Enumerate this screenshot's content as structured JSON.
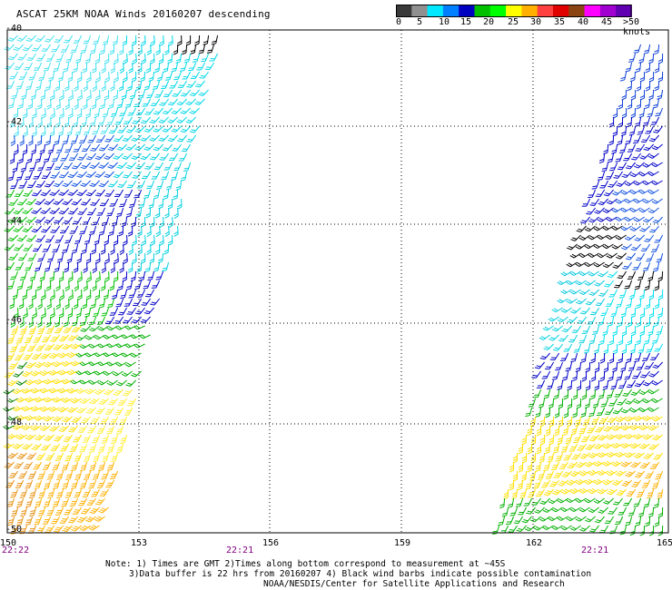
{
  "header": {
    "title": "ASCAT 25KM NOAA Winds 20160207 descending"
  },
  "legend": {
    "colors": [
      "#3a3a3a",
      "#909090",
      "#00e8ff",
      "#0080ff",
      "#0000c0",
      "#00c000",
      "#00ff00",
      "#ffff00",
      "#ffb000",
      "#ff4040",
      "#e00000",
      "#8b4513",
      "#ff00ff",
      "#a000d0",
      "#6000b0"
    ],
    "labels": [
      "0",
      "5",
      "10",
      "15",
      "20",
      "25",
      "30",
      "35",
      "40",
      "45",
      ">50 knots"
    ]
  },
  "map": {
    "x_ticks": [
      "150",
      "153",
      "156",
      "159",
      "162",
      "165"
    ],
    "y_ticks": [
      "-40",
      "-42",
      "-44",
      "-46",
      "-48",
      "-50"
    ],
    "time_labels": [
      "22:22",
      "22:21",
      "22:21"
    ],
    "lon_range": [
      150,
      165
    ],
    "lat_range": [
      -40,
      -50
    ]
  },
  "notes": {
    "line1": "Note: 1) Times are GMT 2)Times along bottom correspond to measurement at ~45S",
    "line2": "3)Data buffer is 22 hrs from 20160207 4) Black wind barbs indicate possible contamination",
    "line3": "NOAA/NESDIS/Center for Satellite Applications and Research"
  }
}
